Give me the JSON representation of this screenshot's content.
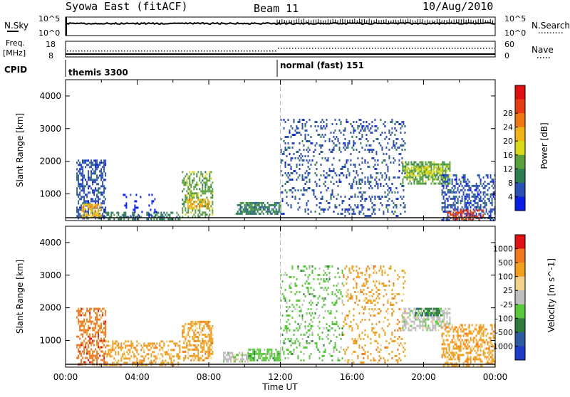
{
  "header": {
    "station": "Syowa East (fitACF)",
    "beam": "Beam 11",
    "date": "10/Aug/2010"
  },
  "side_labels": {
    "nsky": "N.Sky",
    "freq_top": "Freq.",
    "freq_unit": "[MHz]",
    "cpid": "CPID",
    "nsearch": "N.Search",
    "nave": "Nave"
  },
  "strip_ticks": {
    "noise_left_top": "10^5",
    "noise_left_bottom": "10^0",
    "noise_right_top": "10^5",
    "noise_right_bottom": "10^0",
    "freq_left_top": "18",
    "freq_left_bottom": "8",
    "nave_right_top": "60",
    "nave_right_bottom": "0"
  },
  "cpid_segments": [
    {
      "label": "themis 3300",
      "start_hour": 0
    },
    {
      "label": "normal (fast) 151",
      "start_hour": 12
    }
  ],
  "chart_data": [
    {
      "type": "heatmap",
      "quantity": "Power",
      "ylabel": "Slant Range [km]",
      "xlabel": "Time UT",
      "x_ticks": [
        "00:00",
        "04:00",
        "08:00",
        "12:00",
        "16:00",
        "20:00",
        "00:00"
      ],
      "xlim_hours": [
        0,
        24
      ],
      "y_ticks": [
        1000,
        2000,
        3000,
        4000
      ],
      "ylim": [
        180,
        4500
      ],
      "colorbar": {
        "label": "Power [dB]",
        "ticks": [
          "4",
          "8",
          "12",
          "16",
          "20",
          "24",
          "28"
        ],
        "colors": [
          "#0a1ee6",
          "#2d50b4",
          "#2e7d55",
          "#5aa03c",
          "#d9d91a",
          "#f0b41a",
          "#f07814",
          "#e63c14",
          "#e01010"
        ]
      },
      "clusters": [
        {
          "t0": 0.6,
          "t1": 2.2,
          "r0": 250,
          "r1": 2050,
          "color": 1,
          "d": 0.55
        },
        {
          "t0": 0.9,
          "t1": 2.0,
          "r0": 250,
          "r1": 700,
          "color": 5,
          "d": 0.6
        },
        {
          "t0": 2.2,
          "t1": 6.4,
          "r0": 240,
          "r1": 450,
          "color": 2,
          "d": 0.55
        },
        {
          "t0": 3.2,
          "t1": 5.2,
          "r0": 300,
          "r1": 1000,
          "color": 0,
          "d": 0.15
        },
        {
          "t0": 6.5,
          "t1": 8.2,
          "r0": 300,
          "r1": 1700,
          "color": 3,
          "d": 0.45
        },
        {
          "t0": 6.8,
          "t1": 8.0,
          "r0": 550,
          "r1": 850,
          "color": 5,
          "d": 0.6
        },
        {
          "t0": 9.5,
          "t1": 12.0,
          "r0": 400,
          "r1": 750,
          "color": 2,
          "d": 0.7
        },
        {
          "t0": 12.0,
          "t1": 15.5,
          "r0": 400,
          "r1": 3300,
          "color": 1,
          "d": 0.18
        },
        {
          "t0": 15.5,
          "t1": 19.0,
          "r0": 300,
          "r1": 3300,
          "color": 1,
          "d": 0.2
        },
        {
          "t0": 18.8,
          "t1": 21.5,
          "r0": 1300,
          "r1": 2000,
          "color": 3,
          "d": 0.6
        },
        {
          "t0": 19.0,
          "t1": 21.0,
          "r0": 1550,
          "r1": 1850,
          "color": 4,
          "d": 0.55
        },
        {
          "t0": 21.0,
          "t1": 24.0,
          "r0": 220,
          "r1": 1600,
          "color": 1,
          "d": 0.4
        },
        {
          "t0": 21.3,
          "t1": 23.3,
          "r0": 220,
          "r1": 520,
          "color": 7,
          "d": 0.5
        }
      ]
    },
    {
      "type": "heatmap",
      "quantity": "Velocity",
      "ylabel": "Slant Range [km]",
      "xlabel": "Time UT",
      "x_ticks": [
        "00:00",
        "04:00",
        "08:00",
        "12:00",
        "16:00",
        "20:00",
        "00:00"
      ],
      "xlim_hours": [
        0,
        24
      ],
      "y_ticks": [
        1000,
        2000,
        3000,
        4000
      ],
      "ylim": [
        180,
        4500
      ],
      "colorbar": {
        "label": "Velocity [m s^-1]",
        "ticks": [
          "1000",
          "500",
          "100",
          "25",
          "-25",
          "-100",
          "-500",
          "-1000"
        ],
        "colors": [
          "#1e3cc8",
          "#2d5aa0",
          "#2e7d3c",
          "#5ac83c",
          "#bebebe",
          "#f0d28c",
          "#f0a01e",
          "#f0781e",
          "#e01414"
        ]
      },
      "clusters": [
        {
          "t0": 0.6,
          "t1": 2.2,
          "r0": 250,
          "r1": 2000,
          "color": 7,
          "d": 0.5
        },
        {
          "t0": 2.2,
          "t1": 6.4,
          "r0": 240,
          "r1": 1000,
          "color": 6,
          "d": 0.4
        },
        {
          "t0": 6.5,
          "t1": 8.2,
          "r0": 400,
          "r1": 1600,
          "color": 6,
          "d": 0.5
        },
        {
          "t0": 8.8,
          "t1": 10.2,
          "r0": 350,
          "r1": 650,
          "color": 4,
          "d": 0.6
        },
        {
          "t0": 10.2,
          "t1": 12.0,
          "r0": 400,
          "r1": 750,
          "color": 3,
          "d": 0.65
        },
        {
          "t0": 12.0,
          "t1": 15.5,
          "r0": 400,
          "r1": 3300,
          "color": 3,
          "d": 0.18
        },
        {
          "t0": 15.5,
          "t1": 19.0,
          "r0": 300,
          "r1": 3300,
          "color": 6,
          "d": 0.18
        },
        {
          "t0": 18.8,
          "t1": 21.5,
          "r0": 1300,
          "r1": 2000,
          "color": 4,
          "d": 0.6
        },
        {
          "t0": 19.5,
          "t1": 21.0,
          "r0": 1800,
          "r1": 2000,
          "color": 2,
          "d": 0.55
        },
        {
          "t0": 21.0,
          "t1": 24.0,
          "r0": 220,
          "r1": 1500,
          "color": 6,
          "d": 0.45
        }
      ]
    }
  ]
}
